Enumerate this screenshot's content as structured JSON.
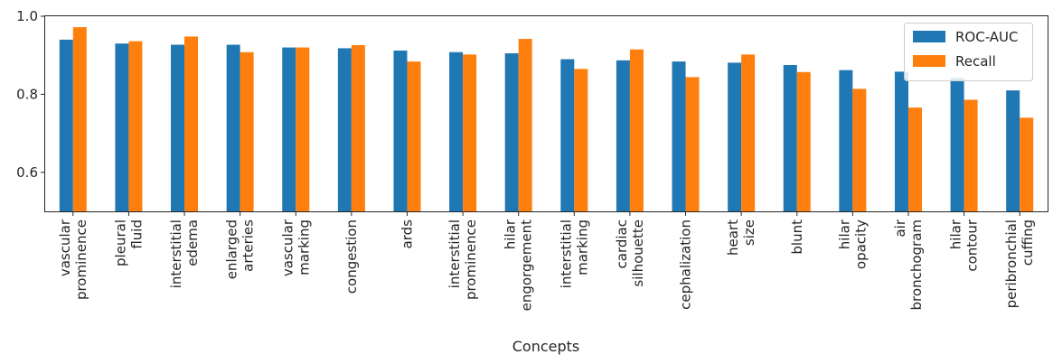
{
  "chart_data": {
    "type": "bar",
    "xlabel": "Concepts",
    "ylabel": "",
    "ylim": [
      0.5,
      1.0
    ],
    "yticks": [
      "0.6",
      "0.8",
      "1.0"
    ],
    "grid": false,
    "legend_position": "top-right",
    "categories": [
      [
        "vascular",
        "prominence"
      ],
      [
        "pleural",
        "fluid"
      ],
      [
        "interstitial",
        "edema"
      ],
      [
        "enlarged",
        "arteries"
      ],
      [
        "vascular",
        "marking"
      ],
      [
        "congestion"
      ],
      [
        "ards"
      ],
      [
        "interstitial",
        "prominence"
      ],
      [
        "hilar",
        "engorgement"
      ],
      [
        "interstitial",
        "marking"
      ],
      [
        "cardiac",
        "silhouette"
      ],
      [
        "cephalization"
      ],
      [
        "heart",
        "size"
      ],
      [
        "blunt"
      ],
      [
        "hilar",
        "opacity"
      ],
      [
        "air",
        "bronchogram"
      ],
      [
        "hilar",
        "contour"
      ],
      [
        "peribronchial",
        "cuffing"
      ]
    ],
    "series": [
      {
        "name": "ROC-AUC",
        "color": "#1f77b4",
        "values": [
          0.94,
          0.93,
          0.927,
          0.927,
          0.92,
          0.918,
          0.912,
          0.908,
          0.905,
          0.89,
          0.887,
          0.884,
          0.881,
          0.875,
          0.862,
          0.858,
          0.842,
          0.81
        ]
      },
      {
        "name": "Recall",
        "color": "#ff7f0e",
        "values": [
          0.972,
          0.936,
          0.948,
          0.908,
          0.92,
          0.926,
          0.884,
          0.902,
          0.942,
          0.865,
          0.915,
          0.844,
          0.902,
          0.857,
          0.814,
          0.766,
          0.786,
          0.74
        ]
      }
    ]
  }
}
